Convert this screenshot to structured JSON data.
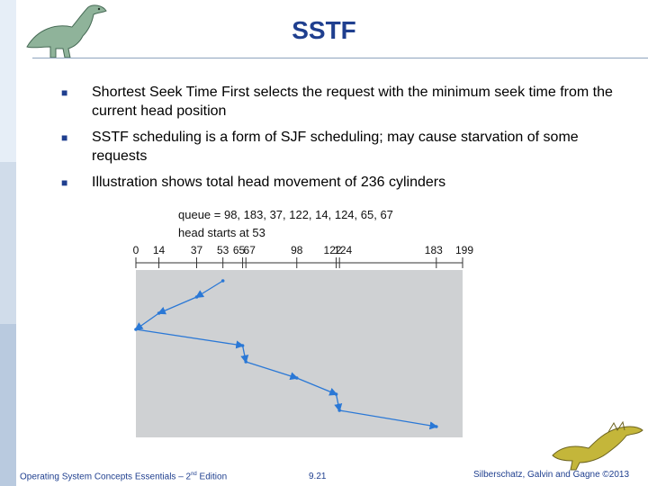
{
  "slide": {
    "title": "SSTF",
    "bullets": [
      "Shortest Seek Time First selects the request with the minimum seek time from the current head position",
      "SSTF scheduling is a form of SJF scheduling; may cause starvation of some requests",
      "Illustration shows total head movement of 236 cylinders"
    ],
    "bullet_icon": "square-bullet-icon"
  },
  "diagram": {
    "queue_text": "queue = 98, 183, 37, 122, 14, 124, 65, 67",
    "head_text": "head starts at 53",
    "axis_ticks": [
      "0",
      "14",
      "37",
      "53",
      "65",
      "67",
      "98",
      "122",
      "124",
      "183",
      "199"
    ],
    "path_cylinders": [
      53,
      37,
      14,
      0,
      65,
      67,
      98,
      122,
      124,
      183
    ],
    "colors": {
      "panel": "#cfd1d3",
      "path": "#2a78d6"
    }
  },
  "footer": {
    "book": "Operating System Concepts Essentials – 2",
    "book_sup": "nd",
    "book_tail": " Edition",
    "page": "9.21",
    "copyright": "Silberschatz, Galvin and Gagne ©2013"
  },
  "decor": {
    "top_left": "dinosaur-logo-icon",
    "bottom_right": "dinosaur-logo-icon"
  }
}
